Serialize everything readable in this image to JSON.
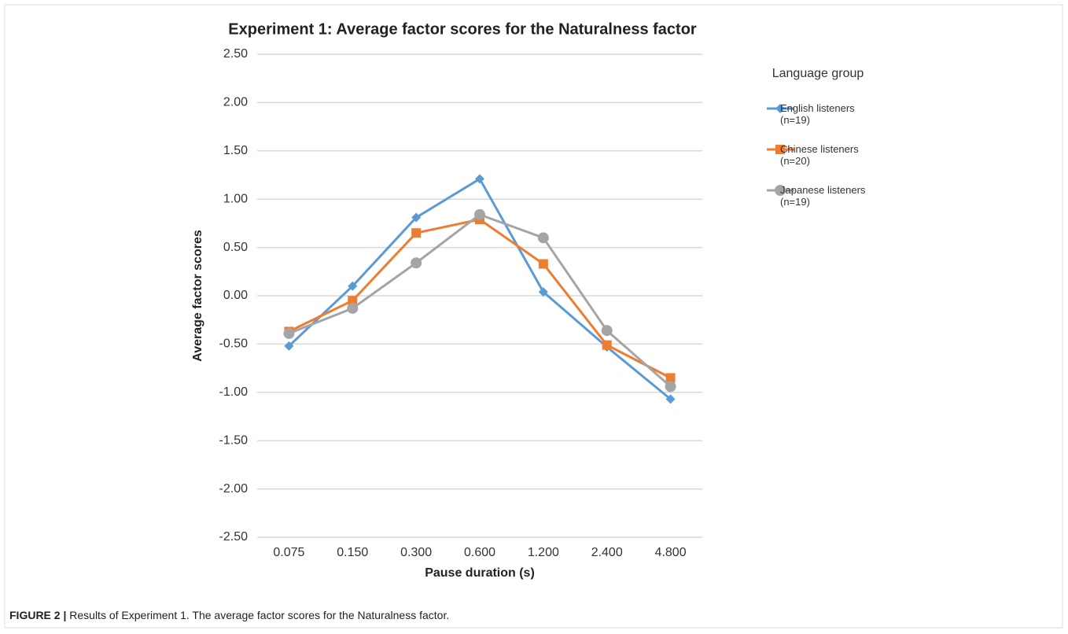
{
  "chart_data": {
    "type": "line",
    "title": "Experiment 1: Average factor scores for the Naturalness factor",
    "x_label": "Pause duration (s)",
    "y_label": "Average factor scores",
    "categories": [
      "0.075",
      "0.150",
      "0.300",
      "0.600",
      "1.200",
      "2.400",
      "4.800"
    ],
    "series": [
      {
        "name": "English listeners\n(n=19)",
        "color": "#5b9bd5",
        "marker": "diamond",
        "values": [
          -0.52,
          0.1,
          0.81,
          1.21,
          0.04,
          -0.53,
          -1.07
        ]
      },
      {
        "name": "Chinese listeners\n(n=20)",
        "color": "#ed7d31",
        "marker": "square",
        "values": [
          -0.37,
          -0.05,
          0.65,
          0.79,
          0.33,
          -0.51,
          -0.85
        ]
      },
      {
        "name": "Japanese listeners\n(n=19)",
        "color": "#a5a5a5",
        "marker": "circle",
        "values": [
          -0.39,
          -0.13,
          0.34,
          0.84,
          0.6,
          -0.36,
          -0.94
        ]
      }
    ],
    "legend_title": "Language group",
    "legend_position": "right",
    "ylim": [
      -2.5,
      2.5
    ],
    "yticks": [
      {
        "value": -2.5,
        "label": "-2.50"
      },
      {
        "value": -2,
        "label": "-2.00"
      },
      {
        "value": -1.5,
        "label": "-1.50"
      },
      {
        "value": -1,
        "label": "-1.00"
      },
      {
        "value": -0.5,
        "label": "-0.50"
      },
      {
        "value": 0,
        "label": "0.00"
      },
      {
        "value": 0.5,
        "label": "0.50"
      },
      {
        "value": 1,
        "label": "1.00"
      },
      {
        "value": 1.5,
        "label": "1.50"
      },
      {
        "value": 2,
        "label": "2.00"
      },
      {
        "value": 2.5,
        "label": "2.50"
      }
    ],
    "grid": true
  },
  "caption": {
    "label": "FIGURE 2 |",
    "text": "Results of Experiment 1. The average factor scores for the Naturalness factor."
  }
}
